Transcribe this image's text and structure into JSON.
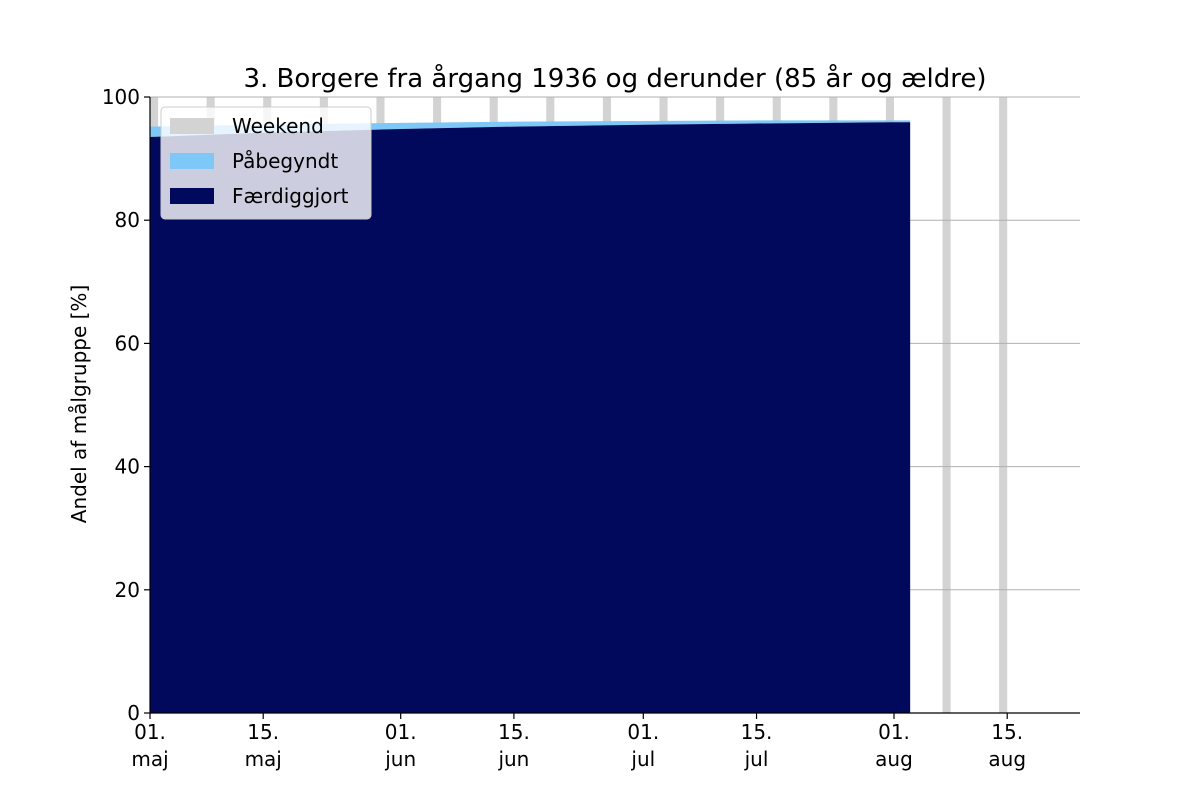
{
  "chart_data": {
    "type": "area",
    "title": "3. Borgere fra årgang 1936 og derunder (85 år og ældre)",
    "xlabel": "",
    "ylabel": "Andel af målgruppe [%]",
    "xlim": [
      "2021-05-01",
      "2021-08-24"
    ],
    "ylim": [
      0,
      100
    ],
    "yticks": [
      0,
      20,
      40,
      60,
      80,
      100
    ],
    "xticks": [
      {
        "date": "2021-05-01",
        "line1": "01.",
        "line2": "maj"
      },
      {
        "date": "2021-05-15",
        "line1": "15.",
        "line2": "maj"
      },
      {
        "date": "2021-06-01",
        "line1": "01.",
        "line2": "jun"
      },
      {
        "date": "2021-06-15",
        "line1": "15.",
        "line2": "jun"
      },
      {
        "date": "2021-07-01",
        "line1": "01.",
        "line2": "jul"
      },
      {
        "date": "2021-07-15",
        "line1": "15.",
        "line2": "jul"
      },
      {
        "date": "2021-08-01",
        "line1": "01.",
        "line2": "aug"
      },
      {
        "date": "2021-08-15",
        "line1": "15.",
        "line2": "aug"
      }
    ],
    "grid": "y",
    "legend_position": "top-left",
    "weekends": [
      "2021-05-01",
      "2021-05-08",
      "2021-05-15",
      "2021-05-22",
      "2021-05-29",
      "2021-06-05",
      "2021-06-12",
      "2021-06-19",
      "2021-06-26",
      "2021-07-03",
      "2021-07-10",
      "2021-07-17",
      "2021-07-24",
      "2021-07-31",
      "2021-08-07",
      "2021-08-14"
    ],
    "legend": [
      {
        "label": "Weekend",
        "color": "#d3d3d3"
      },
      {
        "label": "Påbegyndt",
        "color": "#7dc8f7"
      },
      {
        "label": "Færdiggjort",
        "color": "#00095b"
      }
    ],
    "series": [
      {
        "name": "Færdiggjort",
        "color": "#00095b",
        "x": [
          "2021-05-01",
          "2021-05-15",
          "2021-06-01",
          "2021-06-15",
          "2021-07-01",
          "2021-07-15",
          "2021-08-01",
          "2021-08-03"
        ],
        "y": [
          93.5,
          94.2,
          94.8,
          95.2,
          95.5,
          95.7,
          95.9,
          95.9
        ]
      },
      {
        "name": "Påbegyndt",
        "color": "#7dc8f7",
        "x": [
          "2021-05-01",
          "2021-05-15",
          "2021-06-01",
          "2021-06-15",
          "2021-07-01",
          "2021-07-15",
          "2021-08-01",
          "2021-08-03"
        ],
        "y": [
          95.2,
          95.5,
          95.8,
          96.0,
          96.1,
          96.2,
          96.2,
          96.2
        ]
      }
    ]
  }
}
